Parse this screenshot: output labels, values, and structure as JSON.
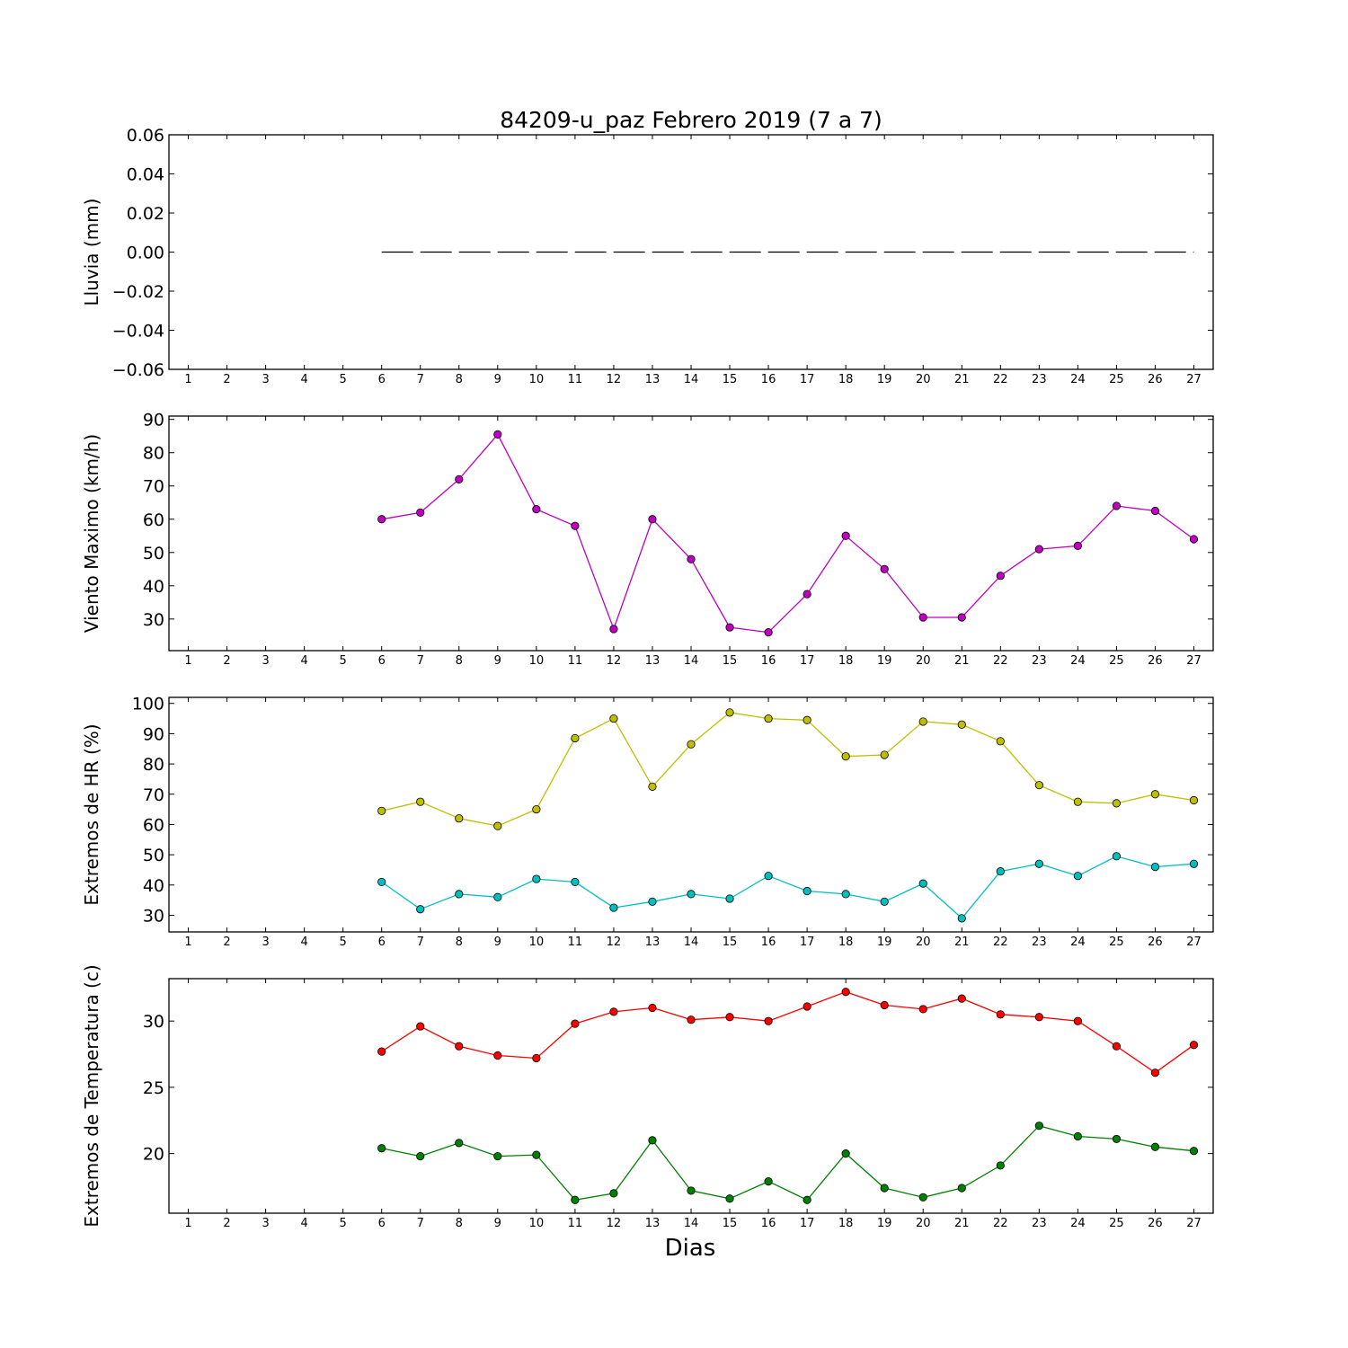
{
  "chart_data": {
    "type": "line",
    "title": "84209-u_paz Febrero 2019  (7 a 7)",
    "xlabel": "Dias",
    "x_ticks": [
      "1",
      "2",
      "3",
      "4",
      "5",
      "6",
      "7",
      "8",
      "9",
      "10",
      "11",
      "12",
      "13",
      "14",
      "15",
      "16",
      "17",
      "18",
      "19",
      "20",
      "21",
      "22",
      "23",
      "24",
      "25",
      "26",
      "27"
    ],
    "x": [
      6,
      7,
      8,
      9,
      10,
      11,
      12,
      13,
      14,
      15,
      16,
      17,
      18,
      19,
      20,
      21,
      22,
      23,
      24,
      25,
      26,
      27
    ],
    "xlim": [
      0.5,
      27.5
    ],
    "panels": [
      {
        "ylabel": "Lluvia (mm)",
        "ylim": [
          -0.06,
          0.06
        ],
        "y_ticks": [
          "0.06",
          "0.04",
          "0.02",
          "0.00",
          "−0.02",
          "−0.04",
          "−0.06"
        ],
        "y_tick_values": [
          0.06,
          0.04,
          0.02,
          0.0,
          -0.02,
          -0.04,
          -0.06
        ],
        "series": [
          {
            "values": [
              0,
              0,
              0,
              0,
              0,
              0,
              0,
              0,
              0,
              0,
              0,
              0,
              0,
              0,
              0,
              0,
              0,
              0,
              0,
              0,
              0,
              0
            ],
            "color": "#000000",
            "style": "dashed",
            "marker": false
          }
        ]
      },
      {
        "ylabel": "Viento Maximo (km/h)",
        "ylim": [
          20.5,
          91
        ],
        "y_ticks": [
          "90",
          "80",
          "70",
          "60",
          "50",
          "40",
          "30"
        ],
        "y_tick_values": [
          90,
          80,
          70,
          60,
          50,
          40,
          30
        ],
        "series": [
          {
            "values": [
              60,
              62,
              72,
              85.5,
              63,
              58,
              27,
              60,
              48,
              27.5,
              26,
              37.5,
              55,
              45,
              30.5,
              30.5,
              43,
              51,
              52,
              64,
              62.5,
              54
            ],
            "color": "#bf00bf",
            "marker": true
          }
        ]
      },
      {
        "ylabel": "Extremos de HR (%)",
        "ylim": [
          24.5,
          102
        ],
        "y_ticks": [
          "100",
          "90",
          "80",
          "70",
          "60",
          "50",
          "40",
          "30"
        ],
        "y_tick_values": [
          100,
          90,
          80,
          70,
          60,
          50,
          40,
          30
        ],
        "series": [
          {
            "values": [
              64.5,
              67.5,
              62,
              59.5,
              65,
              88.5,
              95,
              72.5,
              86.5,
              97,
              95,
              94.5,
              82.5,
              83,
              94,
              93,
              87.5,
              73,
              67.5,
              67,
              70,
              68
            ],
            "color": "#bfbf00",
            "marker": true
          },
          {
            "values": [
              41,
              32,
              37,
              36,
              42,
              41,
              32.5,
              34.5,
              37,
              35.5,
              43,
              38,
              37,
              34.5,
              40.5,
              29,
              44.5,
              47,
              43,
              49.5,
              46,
              47
            ],
            "color": "#00bfbf",
            "marker": true
          }
        ]
      },
      {
        "ylabel": "Extremos de Temperatura (c)",
        "ylim": [
          15.5,
          33.2
        ],
        "y_ticks": [
          "30",
          "25",
          "20"
        ],
        "y_tick_values": [
          30,
          25,
          20
        ],
        "series": [
          {
            "values": [
              27.7,
              29.6,
              28.1,
              27.4,
              27.2,
              29.8,
              30.7,
              31,
              30.1,
              30.3,
              30,
              31.1,
              32.2,
              31.2,
              30.9,
              31.7,
              30.5,
              30.3,
              30,
              28.1,
              26.1,
              28.2
            ],
            "color": "#ff0000",
            "marker": true
          },
          {
            "values": [
              20.4,
              19.8,
              20.8,
              19.8,
              19.9,
              16.5,
              17,
              21,
              17.2,
              16.6,
              17.9,
              16.5,
              20,
              17.4,
              16.7,
              17.4,
              19.1,
              22.1,
              21.3,
              21.1,
              20.5,
              20.2
            ],
            "color": "#008000",
            "marker": true
          }
        ]
      }
    ]
  }
}
